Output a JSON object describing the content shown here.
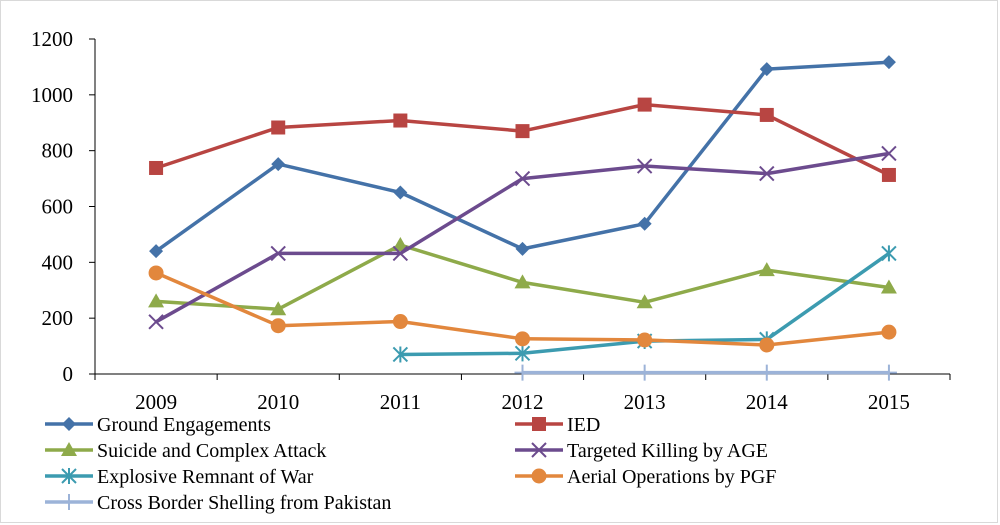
{
  "chart_data": {
    "type": "line",
    "title": "",
    "xlabel": "",
    "ylabel": "",
    "categories": [
      "2009",
      "2010",
      "2011",
      "2012",
      "2013",
      "2014",
      "2015"
    ],
    "ylim": [
      0,
      1200
    ],
    "yticks": [
      0,
      200,
      400,
      600,
      800,
      1000,
      1200
    ],
    "grid": false,
    "legend_position": "bottom",
    "series": [
      {
        "name": "Ground Engagements",
        "color": "#4472a8",
        "marker": "diamond",
        "values": [
          440,
          752,
          650,
          448,
          538,
          1092,
          1117
        ]
      },
      {
        "name": "IED",
        "color": "#b84542",
        "marker": "square",
        "values": [
          738,
          883,
          908,
          870,
          965,
          928,
          713
        ]
      },
      {
        "name": "Suicide and Complex Attack",
        "color": "#8eaa4a",
        "marker": "triangle",
        "values": [
          260,
          232,
          462,
          328,
          257,
          372,
          310
        ]
      },
      {
        "name": "Targeted Killing by AGE",
        "color": "#6c4b8e",
        "marker": "x",
        "values": [
          187,
          432,
          432,
          700,
          745,
          718,
          790
        ]
      },
      {
        "name": "Explosive Remnant of War",
        "color": "#3c9bb0",
        "marker": "star",
        "values": [
          null,
          null,
          70,
          74,
          118,
          124,
          432
        ]
      },
      {
        "name": "Aerial Operations by PGF",
        "color": "#e2873d",
        "marker": "circle",
        "values": [
          362,
          173,
          188,
          126,
          122,
          104,
          150
        ]
      },
      {
        "name": "Cross Border Shelling from Pakistan",
        "color": "#9cb3d8",
        "marker": "plus",
        "values": [
          null,
          null,
          null,
          5,
          5,
          5,
          5
        ]
      }
    ]
  }
}
